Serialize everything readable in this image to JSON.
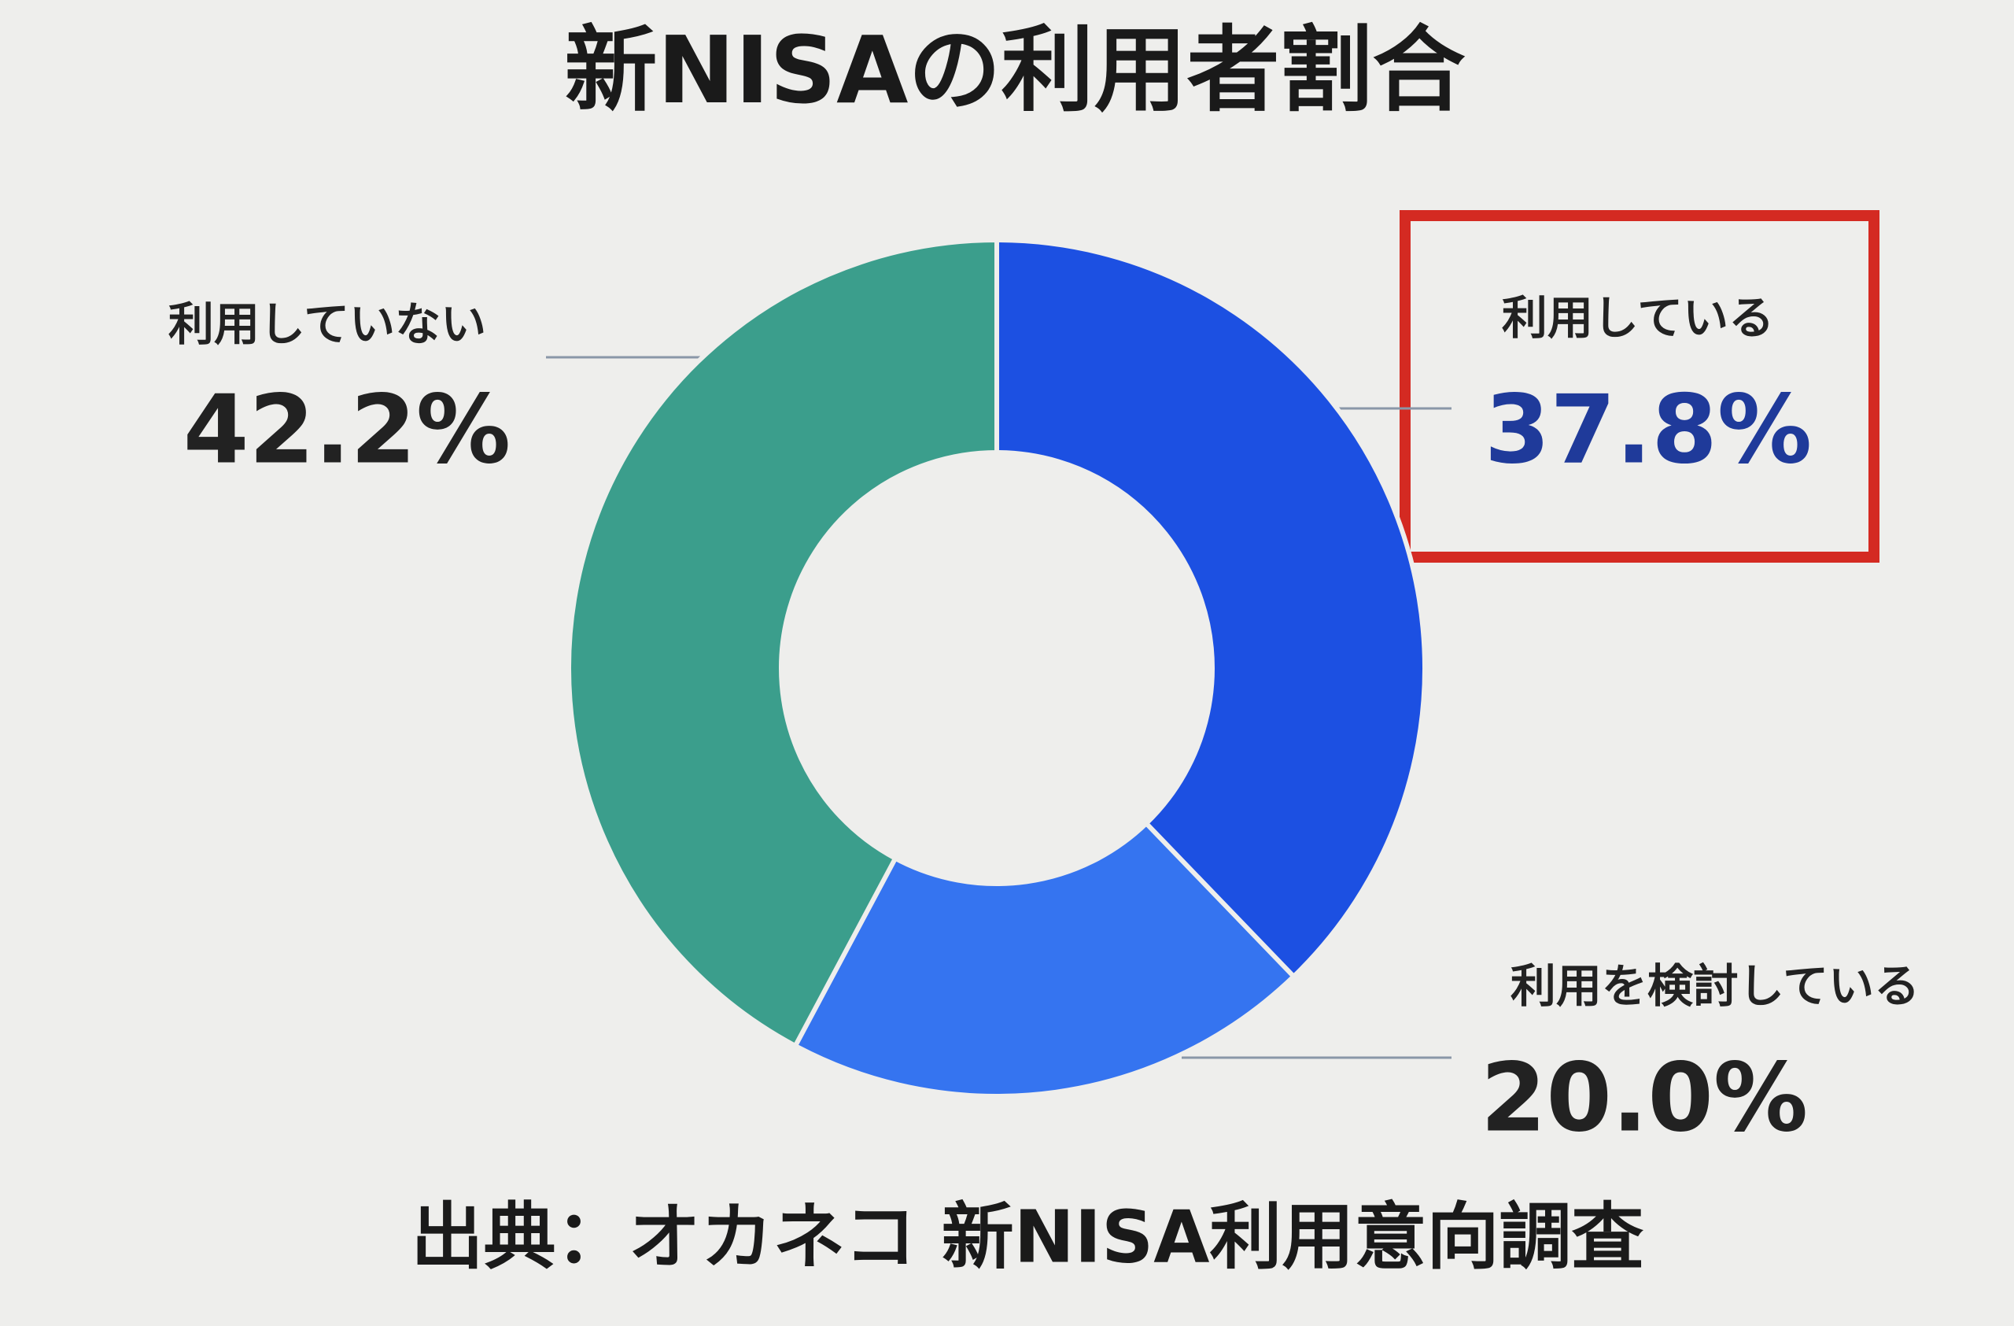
{
  "chart_data": {
    "type": "donut",
    "title": "新NISAの利用者割合",
    "categories": [
      "利用している",
      "利用を検討している",
      "利用していない"
    ],
    "values": [
      37.8,
      20.0,
      42.2
    ],
    "value_labels": [
      "37.8%",
      "20.0%",
      "42.2%"
    ],
    "colors": [
      "#1c50e2",
      "#3574f0",
      "#3b9e8c"
    ],
    "source": "出典：オカネコ 新NISA利用意向調査"
  }
}
